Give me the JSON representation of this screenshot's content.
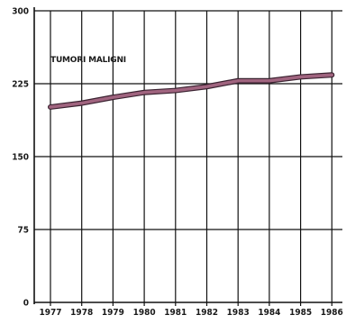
{
  "chart_data": {
    "type": "line",
    "title": "",
    "xlabel": "",
    "ylabel": "",
    "categories": [
      "1977",
      "1978",
      "1979",
      "1980",
      "1981",
      "1982",
      "1983",
      "1984",
      "1985",
      "1986"
    ],
    "series": [
      {
        "name": "TUMORI MALIGNI",
        "values": [
          201,
          205,
          211,
          216,
          218,
          222,
          228,
          228,
          232,
          234
        ]
      }
    ],
    "ylim": [
      0,
      300
    ],
    "yticks": [
      0,
      75,
      150,
      225,
      300
    ],
    "grid": true,
    "line_color": "#a0647f",
    "grid_color": "#111111"
  }
}
